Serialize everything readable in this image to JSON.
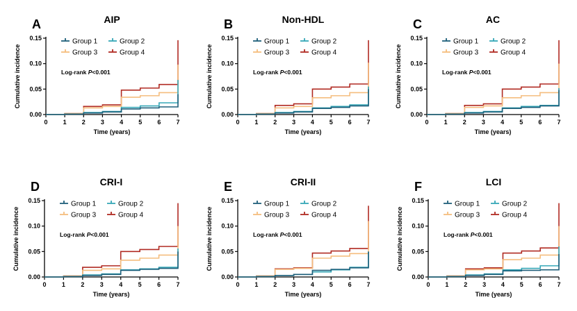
{
  "chart_data": [
    {
      "type": "line",
      "step": true,
      "panel_letter": "A",
      "title": "AIP",
      "xlabel": "Time (years)",
      "ylabel": "Cumulative incidence",
      "xlim": [
        0,
        7
      ],
      "ylim": [
        0,
        0.15
      ],
      "x_ticks": [
        "0",
        "1",
        "2",
        "3",
        "4",
        "5",
        "6",
        "7"
      ],
      "y_ticks": [
        "0.00",
        "0.05",
        "0.10",
        "0.15"
      ],
      "annotation_prefix": "Log-rank ",
      "annotation_p": "P",
      "annotation_suffix": "<0.001",
      "legend": [
        "Group 1",
        "Group 2",
        "Group 3",
        "Group 4"
      ],
      "series": [
        {
          "name": "Group 1",
          "color": "#1f5f7a",
          "points": [
            [
              0,
              0
            ],
            [
              1,
              0.001
            ],
            [
              2,
              0.003
            ],
            [
              3,
              0.005
            ],
            [
              4,
              0.011
            ],
            [
              5,
              0.013
            ],
            [
              6,
              0.015
            ],
            [
              7,
              0.04
            ]
          ]
        },
        {
          "name": "Group 2",
          "color": "#35a7b7",
          "points": [
            [
              0,
              0
            ],
            [
              1,
              0.001
            ],
            [
              2,
              0.004
            ],
            [
              3,
              0.006
            ],
            [
              4,
              0.014
            ],
            [
              5,
              0.017
            ],
            [
              6,
              0.023
            ],
            [
              7,
              0.068
            ]
          ]
        },
        {
          "name": "Group 3",
          "color": "#f5bd7e",
          "points": [
            [
              0,
              0
            ],
            [
              1,
              0.002
            ],
            [
              2,
              0.013
            ],
            [
              3,
              0.016
            ],
            [
              4,
              0.034
            ],
            [
              5,
              0.037
            ],
            [
              6,
              0.043
            ],
            [
              7,
              0.098
            ]
          ]
        },
        {
          "name": "Group 4",
          "color": "#b02a22",
          "points": [
            [
              0,
              0
            ],
            [
              1,
              0.002
            ],
            [
              2,
              0.016
            ],
            [
              3,
              0.019
            ],
            [
              4,
              0.048
            ],
            [
              5,
              0.052
            ],
            [
              6,
              0.059
            ],
            [
              7,
              0.146
            ]
          ]
        }
      ]
    },
    {
      "type": "line",
      "step": true,
      "panel_letter": "B",
      "title": "Non-HDL",
      "xlabel": "Time (years)",
      "ylabel": "Cumulative incidence",
      "xlim": [
        0,
        7
      ],
      "ylim": [
        0,
        0.15
      ],
      "x_ticks": [
        "0",
        "1",
        "2",
        "3",
        "4",
        "5",
        "6",
        "7"
      ],
      "y_ticks": [
        "0.00",
        "0.05",
        "0.10",
        "0.15"
      ],
      "annotation_prefix": "Log-rank ",
      "annotation_p": "P",
      "annotation_suffix": "<0.001",
      "legend": [
        "Group 1",
        "Group 2",
        "Group 3",
        "Group 4"
      ],
      "series": [
        {
          "name": "Group 1",
          "color": "#1f5f7a",
          "points": [
            [
              0,
              0
            ],
            [
              1,
              0.001
            ],
            [
              2,
              0.003
            ],
            [
              3,
              0.005
            ],
            [
              4,
              0.012
            ],
            [
              5,
              0.014
            ],
            [
              6,
              0.017
            ],
            [
              7,
              0.05
            ]
          ]
        },
        {
          "name": "Group 2",
          "color": "#35a7b7",
          "points": [
            [
              0,
              0
            ],
            [
              1,
              0.001
            ],
            [
              2,
              0.004
            ],
            [
              3,
              0.006
            ],
            [
              4,
              0.013
            ],
            [
              5,
              0.016
            ],
            [
              6,
              0.019
            ],
            [
              7,
              0.055
            ]
          ]
        },
        {
          "name": "Group 3",
          "color": "#f5bd7e",
          "points": [
            [
              0,
              0
            ],
            [
              1,
              0.002
            ],
            [
              2,
              0.013
            ],
            [
              3,
              0.016
            ],
            [
              4,
              0.033
            ],
            [
              5,
              0.037
            ],
            [
              6,
              0.043
            ],
            [
              7,
              0.102
            ]
          ]
        },
        {
          "name": "Group 4",
          "color": "#b02a22",
          "points": [
            [
              0,
              0
            ],
            [
              1,
              0.002
            ],
            [
              2,
              0.018
            ],
            [
              3,
              0.021
            ],
            [
              4,
              0.05
            ],
            [
              5,
              0.054
            ],
            [
              6,
              0.06
            ],
            [
              7,
              0.146
            ]
          ]
        }
      ]
    },
    {
      "type": "line",
      "step": true,
      "panel_letter": "C",
      "title": "AC",
      "xlabel": "Time (years)",
      "ylabel": "Cumulative incidence",
      "xlim": [
        0,
        7
      ],
      "ylim": [
        0,
        0.15
      ],
      "x_ticks": [
        "0",
        "1",
        "2",
        "3",
        "4",
        "5",
        "6",
        "7"
      ],
      "y_ticks": [
        "0.00",
        "0.05",
        "0.10",
        "0.15"
      ],
      "annotation_prefix": "Log-rank ",
      "annotation_p": "P",
      "annotation_suffix": "<0.001",
      "legend": [
        "Group 1",
        "Group 2",
        "Group 3",
        "Group 4"
      ],
      "series": [
        {
          "name": "Group 1",
          "color": "#1f5f7a",
          "points": [
            [
              0,
              0
            ],
            [
              1,
              0.001
            ],
            [
              2,
              0.003
            ],
            [
              3,
              0.005
            ],
            [
              4,
              0.012
            ],
            [
              5,
              0.014
            ],
            [
              6,
              0.017
            ],
            [
              7,
              0.048
            ]
          ]
        },
        {
          "name": "Group 2",
          "color": "#35a7b7",
          "points": [
            [
              0,
              0
            ],
            [
              1,
              0.001
            ],
            [
              2,
              0.004
            ],
            [
              3,
              0.006
            ],
            [
              4,
              0.013
            ],
            [
              5,
              0.016
            ],
            [
              6,
              0.018
            ],
            [
              7,
              0.052
            ]
          ]
        },
        {
          "name": "Group 3",
          "color": "#f5bd7e",
          "points": [
            [
              0,
              0
            ],
            [
              1,
              0.002
            ],
            [
              2,
              0.014
            ],
            [
              3,
              0.017
            ],
            [
              4,
              0.033
            ],
            [
              5,
              0.037
            ],
            [
              6,
              0.043
            ],
            [
              7,
              0.1
            ]
          ]
        },
        {
          "name": "Group 4",
          "color": "#b02a22",
          "points": [
            [
              0,
              0
            ],
            [
              1,
              0.002
            ],
            [
              2,
              0.018
            ],
            [
              3,
              0.021
            ],
            [
              4,
              0.05
            ],
            [
              5,
              0.054
            ],
            [
              6,
              0.06
            ],
            [
              7,
              0.146
            ]
          ]
        }
      ]
    },
    {
      "type": "line",
      "step": true,
      "panel_letter": "D",
      "title": "CRI-I",
      "xlabel": "Time (years)",
      "ylabel": "Cumulative incidence",
      "xlim": [
        0,
        7
      ],
      "ylim": [
        0,
        0.15
      ],
      "x_ticks": [
        "0",
        "1",
        "2",
        "3",
        "4",
        "5",
        "6",
        "7"
      ],
      "y_ticks": [
        "0.00",
        "0.05",
        "0.10",
        "0.15"
      ],
      "annotation_prefix": "Log-rank ",
      "annotation_p": "P",
      "annotation_suffix": "<0.001",
      "legend": [
        "Group 1",
        "Group 2",
        "Group 3",
        "Group 4"
      ],
      "series": [
        {
          "name": "Group 1",
          "color": "#1f5f7a",
          "points": [
            [
              0,
              0
            ],
            [
              1,
              0.001
            ],
            [
              2,
              0.003
            ],
            [
              3,
              0.005
            ],
            [
              4,
              0.013
            ],
            [
              5,
              0.015
            ],
            [
              6,
              0.017
            ],
            [
              7,
              0.05
            ]
          ]
        },
        {
          "name": "Group 2",
          "color": "#35a7b7",
          "points": [
            [
              0,
              0
            ],
            [
              1,
              0.001
            ],
            [
              2,
              0.004
            ],
            [
              3,
              0.006
            ],
            [
              4,
              0.014
            ],
            [
              5,
              0.016
            ],
            [
              6,
              0.019
            ],
            [
              7,
              0.056
            ]
          ]
        },
        {
          "name": "Group 3",
          "color": "#f5bd7e",
          "points": [
            [
              0,
              0
            ],
            [
              1,
              0.002
            ],
            [
              2,
              0.013
            ],
            [
              3,
              0.016
            ],
            [
              4,
              0.033
            ],
            [
              5,
              0.037
            ],
            [
              6,
              0.043
            ],
            [
              7,
              0.1
            ]
          ]
        },
        {
          "name": "Group 4",
          "color": "#b02a22",
          "points": [
            [
              0,
              0
            ],
            [
              1,
              0.002
            ],
            [
              2,
              0.019
            ],
            [
              3,
              0.022
            ],
            [
              4,
              0.05
            ],
            [
              5,
              0.054
            ],
            [
              6,
              0.06
            ],
            [
              7,
              0.145
            ]
          ]
        }
      ]
    },
    {
      "type": "line",
      "step": true,
      "panel_letter": "E",
      "title": "CRI-II",
      "xlabel": "Time (years)",
      "ylabel": "Cumulative incidence",
      "xlim": [
        0,
        7
      ],
      "ylim": [
        0,
        0.15
      ],
      "x_ticks": [
        "0",
        "1",
        "2",
        "3",
        "4",
        "5",
        "6",
        "7"
      ],
      "y_ticks": [
        "0.00",
        "0.05",
        "0.10",
        "0.15"
      ],
      "annotation_prefix": "Log-rank ",
      "annotation_p": "P",
      "annotation_suffix": "<0.001",
      "legend": [
        "Group 1",
        "Group 2",
        "Group 3",
        "Group 4"
      ],
      "series": [
        {
          "name": "Group 1",
          "color": "#1f5f7a",
          "points": [
            [
              0,
              0
            ],
            [
              1,
              0.001
            ],
            [
              2,
              0.003
            ],
            [
              3,
              0.005
            ],
            [
              4,
              0.013
            ],
            [
              5,
              0.015
            ],
            [
              6,
              0.018
            ],
            [
              7,
              0.05
            ]
          ]
        },
        {
          "name": "Group 2",
          "color": "#35a7b7",
          "points": [
            [
              0,
              0
            ],
            [
              1,
              0.001
            ],
            [
              2,
              0.003
            ],
            [
              3,
              0.005
            ],
            [
              4,
              0.01
            ],
            [
              5,
              0.014
            ],
            [
              6,
              0.019
            ],
            [
              7,
              0.05
            ]
          ]
        },
        {
          "name": "Group 3",
          "color": "#f5bd7e",
          "points": [
            [
              0,
              0
            ],
            [
              1,
              0.002
            ],
            [
              2,
              0.015
            ],
            [
              3,
              0.017
            ],
            [
              4,
              0.037
            ],
            [
              5,
              0.041
            ],
            [
              6,
              0.046
            ],
            [
              7,
              0.11
            ]
          ]
        },
        {
          "name": "Group 4",
          "color": "#b02a22",
          "points": [
            [
              0,
              0
            ],
            [
              1,
              0.002
            ],
            [
              2,
              0.016
            ],
            [
              3,
              0.018
            ],
            [
              4,
              0.047
            ],
            [
              5,
              0.051
            ],
            [
              6,
              0.056
            ],
            [
              7,
              0.14
            ]
          ]
        }
      ]
    },
    {
      "type": "line",
      "step": true,
      "panel_letter": "F",
      "title": "LCI",
      "xlabel": "Time (years)",
      "ylabel": "Cumulative incidence",
      "xlim": [
        0,
        7
      ],
      "ylim": [
        0,
        0.15
      ],
      "x_ticks": [
        "0",
        "1",
        "2",
        "3",
        "4",
        "5",
        "6",
        "7"
      ],
      "y_ticks": [
        "0.00",
        "0.05",
        "0.10",
        "0.15"
      ],
      "annotation_prefix": "Log-rank ",
      "annotation_p": "P",
      "annotation_suffix": "<0.001",
      "legend": [
        "Group 1",
        "Group 2",
        "Group 3",
        "Group 4"
      ],
      "series": [
        {
          "name": "Group 1",
          "color": "#1f5f7a",
          "points": [
            [
              0,
              0
            ],
            [
              1,
              0.001
            ],
            [
              2,
              0.003
            ],
            [
              3,
              0.005
            ],
            [
              4,
              0.012
            ],
            [
              5,
              0.013
            ],
            [
              6,
              0.014
            ],
            [
              7,
              0.045
            ]
          ]
        },
        {
          "name": "Group 2",
          "color": "#35a7b7",
          "points": [
            [
              0,
              0
            ],
            [
              1,
              0.001
            ],
            [
              2,
              0.004
            ],
            [
              3,
              0.006
            ],
            [
              4,
              0.014
            ],
            [
              5,
              0.017
            ],
            [
              6,
              0.022
            ],
            [
              7,
              0.06
            ]
          ]
        },
        {
          "name": "Group 3",
          "color": "#f5bd7e",
          "points": [
            [
              0,
              0
            ],
            [
              1,
              0.002
            ],
            [
              2,
              0.014
            ],
            [
              3,
              0.016
            ],
            [
              4,
              0.034
            ],
            [
              5,
              0.037
            ],
            [
              6,
              0.043
            ],
            [
              7,
              0.1
            ]
          ]
        },
        {
          "name": "Group 4",
          "color": "#b02a22",
          "points": [
            [
              0,
              0
            ],
            [
              1,
              0.002
            ],
            [
              2,
              0.016
            ],
            [
              3,
              0.018
            ],
            [
              4,
              0.047
            ],
            [
              5,
              0.051
            ],
            [
              6,
              0.057
            ],
            [
              7,
              0.145
            ]
          ]
        }
      ]
    }
  ]
}
